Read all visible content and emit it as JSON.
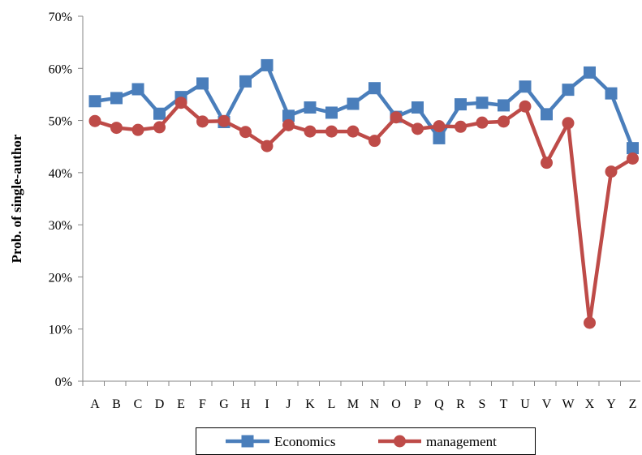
{
  "chart_data": {
    "type": "line",
    "title": "",
    "xlabel": "",
    "ylabel": "Prob. of single-author",
    "categories": [
      "A",
      "B",
      "C",
      "D",
      "E",
      "F",
      "G",
      "H",
      "I",
      "J",
      "K",
      "L",
      "M",
      "N",
      "O",
      "P",
      "Q",
      "R",
      "S",
      "T",
      "U",
      "V",
      "W",
      "X",
      "Y",
      "Z"
    ],
    "ylim": [
      0,
      0.7
    ],
    "yticks": [
      "0%",
      "10%",
      "20%",
      "30%",
      "40%",
      "50%",
      "60%",
      "70%"
    ],
    "grid": false,
    "legend_position": "bottom",
    "series": [
      {
        "name": "Economics",
        "color": "#4a7ebb",
        "marker": "square",
        "values": [
          0.537,
          0.543,
          0.56,
          0.513,
          0.545,
          0.571,
          0.497,
          0.575,
          0.606,
          0.509,
          0.525,
          0.515,
          0.532,
          0.562,
          0.507,
          0.525,
          0.466,
          0.531,
          0.534,
          0.529,
          0.565,
          0.512,
          0.559,
          0.592,
          0.552,
          0.447
        ]
      },
      {
        "name": "management",
        "color": "#be4b48",
        "marker": "circle",
        "values": [
          0.499,
          0.486,
          0.482,
          0.487,
          0.534,
          0.498,
          0.499,
          0.478,
          0.451,
          0.491,
          0.479,
          0.479,
          0.479,
          0.461,
          0.506,
          0.484,
          0.489,
          0.488,
          0.496,
          0.498,
          0.527,
          0.419,
          0.495,
          0.112,
          0.402,
          0.427
        ]
      }
    ]
  }
}
